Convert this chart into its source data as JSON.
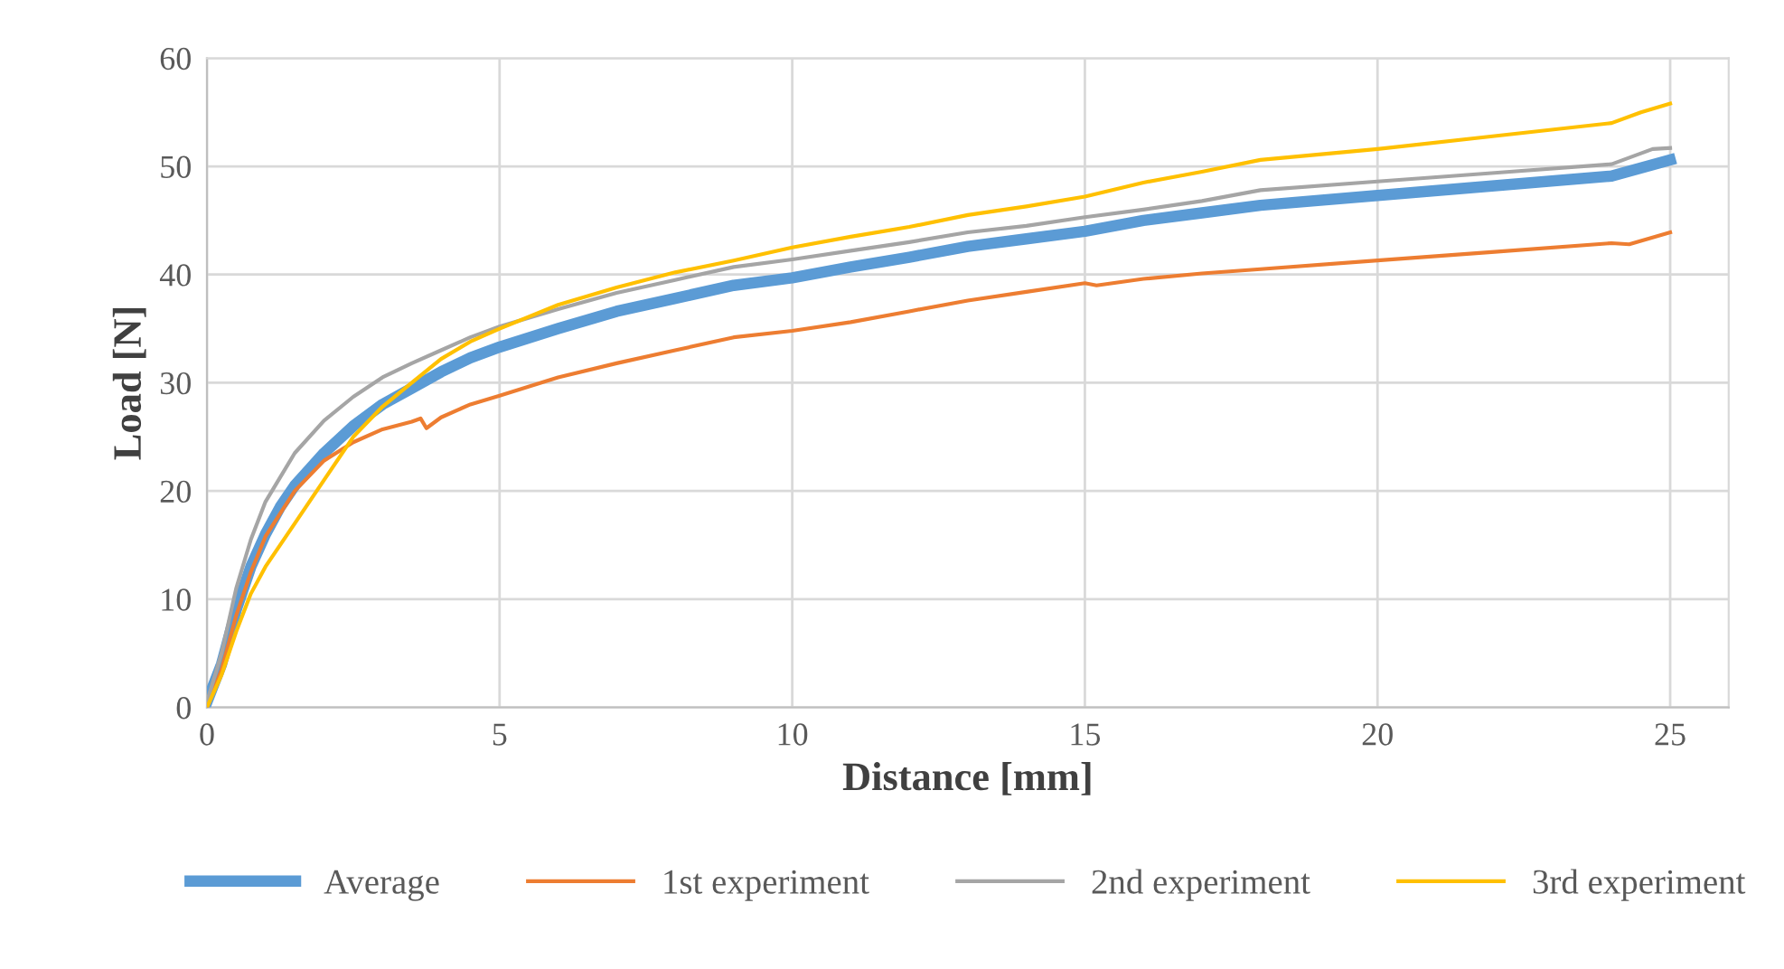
{
  "chart_data": {
    "type": "line",
    "xlabel": "Distance [mm]",
    "ylabel": "Load [N]",
    "xlim": [
      0,
      26
    ],
    "xticks": [
      0,
      5,
      10,
      15,
      20,
      25
    ],
    "ylim": [
      0,
      60
    ],
    "yticks": [
      0,
      10,
      20,
      30,
      40,
      50,
      60
    ],
    "grid": true,
    "legend": "bottom",
    "marker": "none",
    "line_style": "solid",
    "series": [
      {
        "name": "Average",
        "color": "#5b9bd5",
        "x": [
          0,
          0.25,
          0.5,
          0.75,
          1,
          1.25,
          1.5,
          2,
          2.5,
          3,
          3.5,
          4,
          4.5,
          5,
          6,
          7,
          8,
          9,
          10,
          11,
          12,
          13,
          14,
          15,
          16,
          17,
          18,
          20,
          22,
          24,
          25
        ],
        "values": [
          0.5,
          4,
          9,
          13,
          16,
          18.5,
          20.5,
          23.5,
          26,
          28,
          29.5,
          31,
          32.3,
          33.3,
          35,
          36.6,
          37.8,
          39,
          39.7,
          40.7,
          41.6,
          42.6,
          43.3,
          44,
          45,
          45.7,
          46.4,
          47.3,
          48.2,
          49.1,
          50.6
        ]
      },
      {
        "name": "1st experiment",
        "color": "#ed7d31",
        "x": [
          0,
          0.25,
          0.5,
          0.75,
          1,
          1.5,
          2,
          2.5,
          3,
          3.5,
          3.65,
          3.75,
          4,
          4.5,
          5,
          6,
          7,
          8,
          9,
          10,
          11,
          12,
          13,
          14,
          15,
          15.2,
          16,
          17,
          18,
          20,
          22,
          24,
          24.3,
          25
        ],
        "values": [
          0,
          3.5,
          8.5,
          12.5,
          15.8,
          20,
          22.8,
          24.5,
          25.7,
          26.4,
          26.7,
          25.8,
          26.8,
          28,
          28.8,
          30.5,
          31.8,
          33,
          34.2,
          34.8,
          35.6,
          36.6,
          37.6,
          38.4,
          39.2,
          39,
          39.6,
          40.1,
          40.5,
          41.3,
          42.1,
          42.9,
          42.8,
          43.9
        ]
      },
      {
        "name": "2nd experiment",
        "color": "#a5a5a5",
        "x": [
          0,
          0.25,
          0.5,
          0.75,
          1,
          1.5,
          2,
          2.5,
          3,
          3.5,
          4,
          4.5,
          5,
          6,
          7,
          8,
          9,
          10,
          11,
          12,
          13,
          14,
          15,
          16,
          17,
          18,
          20,
          22,
          24,
          24.7,
          25
        ],
        "values": [
          0.5,
          5,
          11,
          15.5,
          19,
          23.5,
          26.5,
          28.7,
          30.5,
          31.8,
          33,
          34.2,
          35.2,
          36.8,
          38.3,
          39.5,
          40.7,
          41.4,
          42.2,
          43,
          43.9,
          44.5,
          45.3,
          46,
          46.8,
          47.8,
          48.6,
          49.4,
          50.2,
          51.6,
          51.7
        ]
      },
      {
        "name": "3rd experiment",
        "color": "#ffc000",
        "x": [
          0,
          0.25,
          0.5,
          0.75,
          1,
          1.5,
          2,
          2.5,
          3,
          3.5,
          4,
          4.5,
          5,
          6,
          7,
          8,
          9,
          10,
          11,
          12,
          13,
          14,
          15,
          16,
          17,
          18,
          20,
          22,
          24,
          24.5,
          25
        ],
        "values": [
          0,
          3,
          7,
          10.5,
          13,
          17,
          21,
          25,
          27.8,
          30,
          32.2,
          33.8,
          35,
          37.2,
          38.8,
          40.2,
          41.3,
          42.5,
          43.5,
          44.4,
          45.5,
          46.3,
          47.2,
          48.5,
          49.5,
          50.6,
          51.6,
          52.8,
          54,
          55,
          55.8
        ]
      }
    ]
  }
}
